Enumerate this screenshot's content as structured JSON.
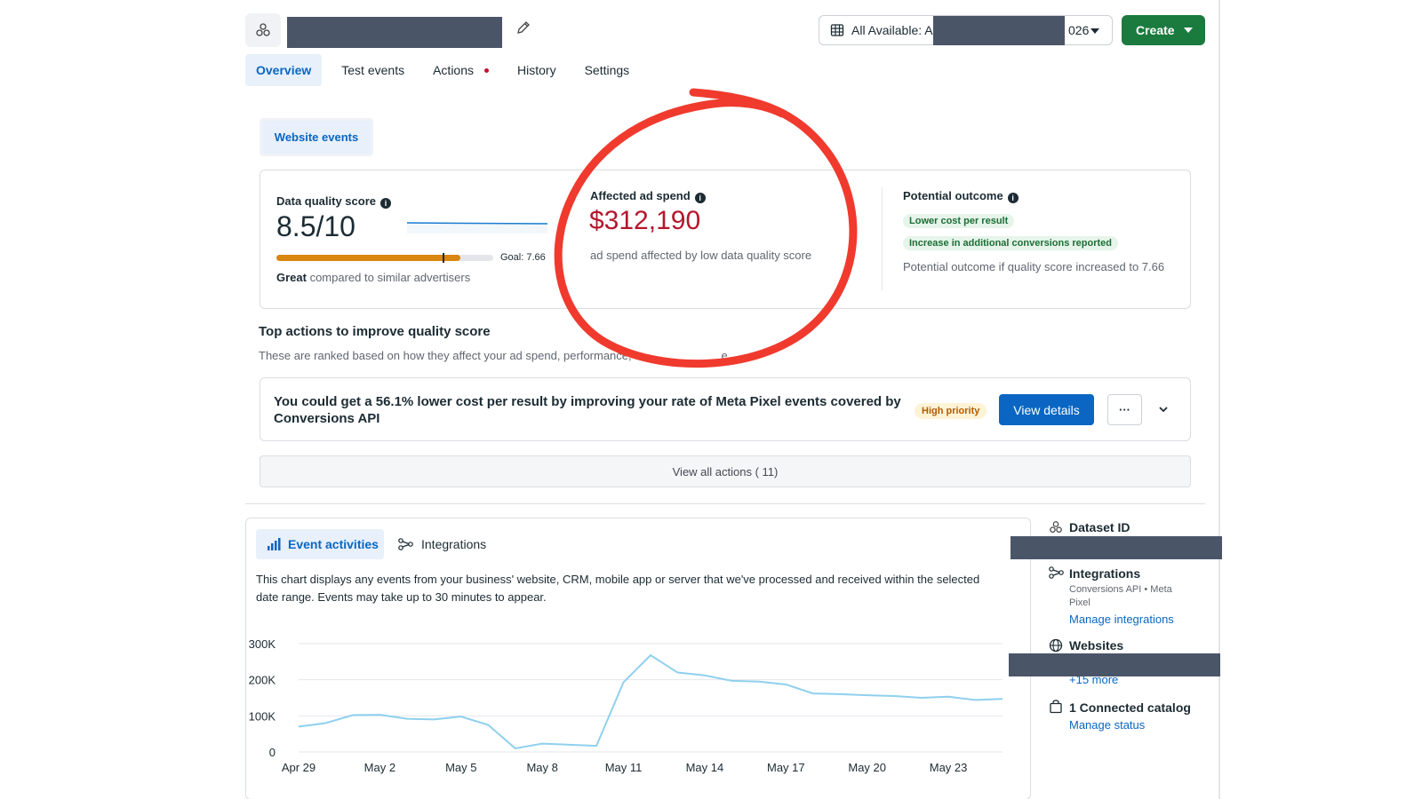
{
  "header": {
    "date_range_prefix": "All Available: Ap",
    "date_range_suffix": "026",
    "create_label": "Create"
  },
  "tabs": [
    {
      "label": "Overview",
      "active": true
    },
    {
      "label": "Test events",
      "active": false
    },
    {
      "label": "Actions",
      "active": false,
      "has_dot": true
    },
    {
      "label": "History",
      "active": false
    },
    {
      "label": "Settings",
      "active": false
    }
  ],
  "website_events_label": "Website events",
  "quality": {
    "title": "Data quality score",
    "score": "8.5/10",
    "goal_label": "Goal: 7.66",
    "progress_fraction": 0.85,
    "goal_fraction": 0.766,
    "compare_bold": "Great",
    "compare_rest": " compared to similar advertisers"
  },
  "affected": {
    "title": "Affected ad spend",
    "value": "$312,190",
    "desc": "ad spend affected by low data quality score"
  },
  "potential": {
    "title": "Potential outcome",
    "pill1": "Lower cost per result",
    "pill2": "Increase in additional conversions reported",
    "desc": "Potential outcome if quality score increased to 7.66"
  },
  "actions": {
    "title": "Top actions to improve quality score",
    "subtitle": "These are ranked based on how they affect your ad spend, performance, a",
    "subtitle_tail": "e.",
    "item_text": "You could get a 56.1% lower cost per result by improving your rate of Meta Pixel events covered by Conversions API",
    "priority": "High priority",
    "view_details": "View details",
    "more": "···",
    "view_all": "View all actions ( 11)"
  },
  "event_activities": {
    "tab_label": "Event activities",
    "integrations_tab": "Integrations",
    "description": "This chart displays any events from your business' website, CRM, mobile app or server that we've processed and received within the selected date range. Events may take up to 30 minutes to appear."
  },
  "sidebar": {
    "dataset_id": "Dataset ID",
    "integrations_title": "Integrations",
    "integrations_sub": "Conversions API • Meta Pixel",
    "manage_integrations": "Manage integrations",
    "websites_title": "Websites",
    "websites_more": "+15 more",
    "catalog_title": "1 Connected catalog",
    "manage_status": "Manage status"
  },
  "colors": {
    "accent_blue": "#0a66c2",
    "create_green": "#1b7a3e",
    "spend_red": "#b5162c",
    "annotation_red": "#f03a2e",
    "line_color": "#8fd0ee",
    "progress_orange": "#d9850f"
  },
  "chart_data": {
    "type": "line",
    "x": [
      "Apr 29",
      "Apr 30",
      "May 1",
      "May 2",
      "May 3",
      "May 4",
      "May 5",
      "May 6",
      "May 7",
      "May 8",
      "May 9",
      "May 10",
      "May 11",
      "May 12",
      "May 13",
      "May 14",
      "May 15",
      "May 16",
      "May 17",
      "May 18",
      "May 19",
      "May 20",
      "May 21",
      "May 22",
      "May 23",
      "May 24",
      "May 25"
    ],
    "tick_labels": [
      "Apr 29",
      "May 2",
      "May 5",
      "May 8",
      "May 11",
      "May 14",
      "May 17",
      "May 20",
      "May 23"
    ],
    "series": [
      {
        "values": [
          70000,
          80000,
          102000,
          103000,
          92000,
          90000,
          98000,
          75000,
          10000,
          23000,
          20000,
          17000,
          193000,
          268000,
          220000,
          212000,
          197000,
          195000,
          187000,
          162000,
          160000,
          157000,
          155000,
          150000,
          153000,
          144000,
          147000
        ]
      }
    ],
    "y_ticks": [
      "0",
      "100K",
      "200K",
      "300K"
    ],
    "ylim": [
      0,
      300000
    ],
    "grid": true
  }
}
